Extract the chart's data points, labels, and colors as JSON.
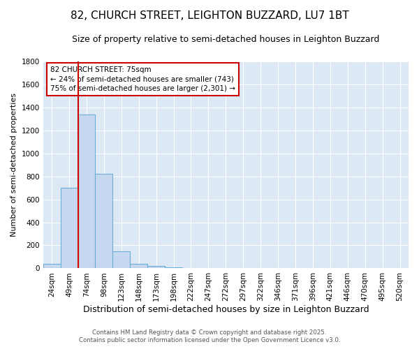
{
  "title": "82, CHURCH STREET, LEIGHTON BUZZARD, LU7 1BT",
  "subtitle": "Size of property relative to semi-detached houses in Leighton Buzzard",
  "xlabel": "Distribution of semi-detached houses by size in Leighton Buzzard",
  "ylabel": "Number of semi-detached properties",
  "categories": [
    "24sqm",
    "49sqm",
    "74sqm",
    "98sqm",
    "123sqm",
    "148sqm",
    "173sqm",
    "198sqm",
    "222sqm",
    "247sqm",
    "272sqm",
    "297sqm",
    "322sqm",
    "346sqm",
    "371sqm",
    "396sqm",
    "421sqm",
    "446sqm",
    "470sqm",
    "495sqm",
    "520sqm"
  ],
  "values": [
    40,
    700,
    1340,
    820,
    150,
    40,
    20,
    10,
    0,
    0,
    0,
    0,
    0,
    0,
    0,
    0,
    0,
    0,
    0,
    0,
    0
  ],
  "bar_color": "#c5d8ef",
  "bar_edge_color": "#6baed6",
  "fig_background_color": "#ffffff",
  "plot_background_color": "#dce9f5",
  "grid_color": "#ffffff",
  "vline_color": "#cc0000",
  "vline_x_index": 2,
  "annotation_title": "82 CHURCH STREET: 75sqm",
  "annotation_line1": "← 24% of semi-detached houses are smaller (743)",
  "annotation_line2": "75% of semi-detached houses are larger (2,301) →",
  "annotation_box_facecolor": "#ffffff",
  "annotation_box_edgecolor": "#cc0000",
  "ylim": [
    0,
    1800
  ],
  "yticks": [
    0,
    200,
    400,
    600,
    800,
    1000,
    1200,
    1400,
    1600,
    1800
  ],
  "title_fontsize": 11,
  "subtitle_fontsize": 9,
  "xlabel_fontsize": 9,
  "ylabel_fontsize": 8,
  "tick_fontsize": 7.5,
  "footnote1": "Contains HM Land Registry data © Crown copyright and database right 2025.",
  "footnote2": "Contains public sector information licensed under the Open Government Licence v3.0."
}
